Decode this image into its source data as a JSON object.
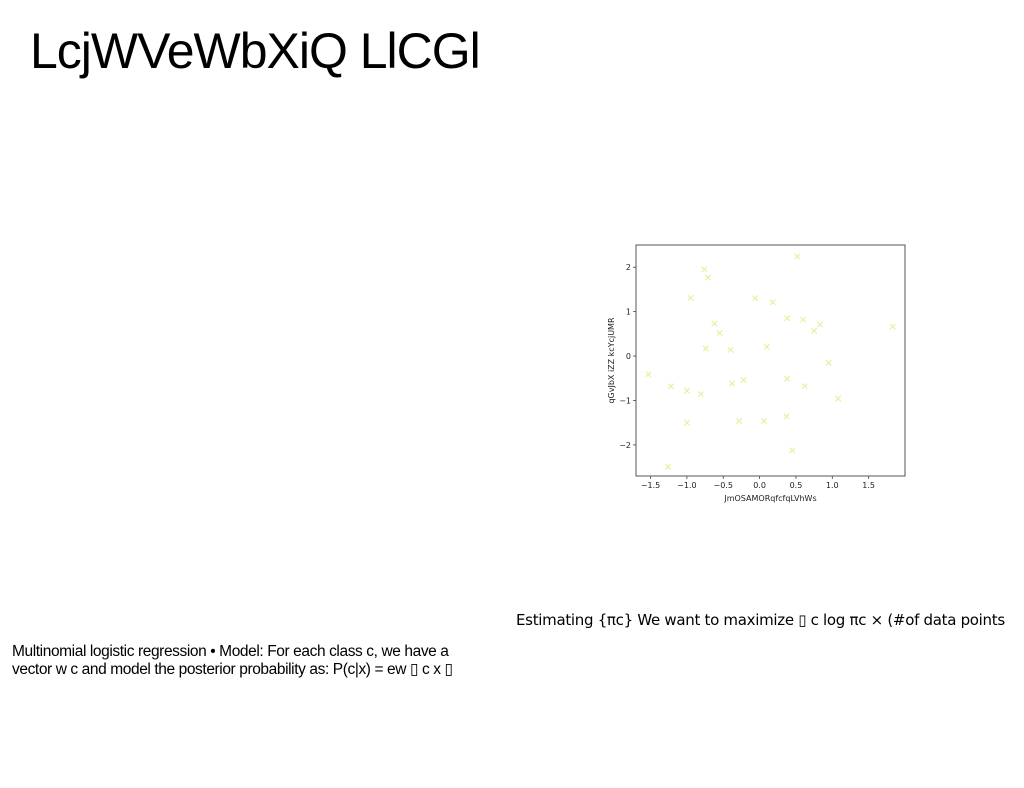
{
  "slide": {
    "title": "LcjWVeWbXiQ LlCGl",
    "caption_right": "Estimating {πc} We want to maximize ▯ c log πc × (#of data points",
    "caption_left_line1": "Multinomial logistic regression • Model: For each class c, we have a",
    "caption_left_line2": "vector w c and model the posterior probability as: P(c|x) = ew ▯ c x ▯"
  },
  "chart_data": {
    "type": "scatter",
    "title": "",
    "xlabel": "JmOSAMORqfcfqLVhWs",
    "ylabel": "qGvJbX iZZ kcYcjUMR",
    "xlim": [
      -1.7,
      2.0
    ],
    "ylim": [
      -2.7,
      2.5
    ],
    "xticks": [
      -1.5,
      -1.0,
      -0.5,
      0.0,
      0.5,
      1.0,
      1.5
    ],
    "xtick_labels": [
      "−1.5",
      "−1.0",
      "−0.5",
      "0.0",
      "0.5",
      "1.0",
      "1.5"
    ],
    "yticks": [
      2,
      1,
      0,
      -1,
      -2
    ],
    "ytick_labels": [
      "2",
      "1",
      "0",
      "−1",
      "−2"
    ],
    "marker": "x",
    "marker_color": "#e6ef9a",
    "grid": false,
    "points": [
      {
        "x": -1.53,
        "y": -0.41
      },
      {
        "x": -1.26,
        "y": -2.49
      },
      {
        "x": -1.22,
        "y": -0.68
      },
      {
        "x": -1.0,
        "y": -0.78
      },
      {
        "x": -1.0,
        "y": -1.5
      },
      {
        "x": -0.95,
        "y": 1.31
      },
      {
        "x": -0.81,
        "y": -0.86
      },
      {
        "x": -0.76,
        "y": 1.95
      },
      {
        "x": -0.74,
        "y": 0.17
      },
      {
        "x": -0.71,
        "y": 1.77
      },
      {
        "x": -0.62,
        "y": 0.73
      },
      {
        "x": -0.55,
        "y": 0.52
      },
      {
        "x": -0.4,
        "y": 0.14
      },
      {
        "x": -0.38,
        "y": -0.62
      },
      {
        "x": -0.28,
        "y": -1.46
      },
      {
        "x": -0.22,
        "y": -0.54
      },
      {
        "x": -0.06,
        "y": 1.3
      },
      {
        "x": 0.06,
        "y": -1.46
      },
      {
        "x": 0.1,
        "y": 0.21
      },
      {
        "x": 0.18,
        "y": 1.21
      },
      {
        "x": 0.37,
        "y": -1.36
      },
      {
        "x": 0.38,
        "y": 0.85
      },
      {
        "x": 0.38,
        "y": -0.51
      },
      {
        "x": 0.45,
        "y": -2.12
      },
      {
        "x": 0.52,
        "y": 2.24
      },
      {
        "x": 0.6,
        "y": 0.82
      },
      {
        "x": 0.62,
        "y": -0.68
      },
      {
        "x": 0.75,
        "y": 0.57
      },
      {
        "x": 0.83,
        "y": 0.71
      },
      {
        "x": 0.95,
        "y": -0.15
      },
      {
        "x": 1.08,
        "y": -0.96
      },
      {
        "x": 1.83,
        "y": 0.66
      }
    ]
  }
}
